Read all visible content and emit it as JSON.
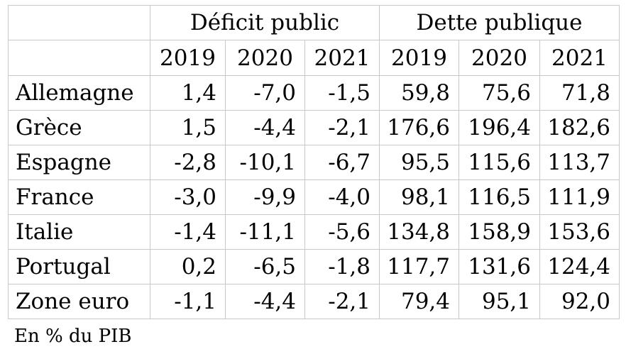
{
  "table": {
    "groups": [
      "Déficit public",
      "Dette publique"
    ],
    "years": [
      "2019",
      "2020",
      "2021",
      "2019",
      "2020",
      "2021"
    ],
    "rows": [
      {
        "country": "Allemagne",
        "values": [
          "1,4",
          "-7,0",
          "-1,5",
          "59,8",
          "75,6",
          "71,8"
        ]
      },
      {
        "country": "Grèce",
        "values": [
          "1,5",
          "-4,4",
          "-2,1",
          "176,6",
          "196,4",
          "182,6"
        ]
      },
      {
        "country": "Espagne",
        "values": [
          "-2,8",
          "-10,1",
          "-6,7",
          "95,5",
          "115,6",
          "113,7"
        ]
      },
      {
        "country": "France",
        "values": [
          "-3,0",
          "-9,9",
          "-4,0",
          "98,1",
          "116,5",
          "111,9"
        ]
      },
      {
        "country": "Italie",
        "values": [
          "-1,4",
          "-11,1",
          "-5,6",
          "134,8",
          "158,9",
          "153,6"
        ]
      },
      {
        "country": "Portugal",
        "values": [
          "0,2",
          "-6,5",
          "-1,8",
          "117,7",
          "131,6",
          "124,4"
        ]
      },
      {
        "country": "Zone euro",
        "values": [
          "-1,1",
          "-4,4",
          "-2,1",
          "79,4",
          "95,1",
          "92,0"
        ]
      }
    ]
  },
  "footnote": "En % du PIB",
  "colors": {
    "border": "#c8c8c8",
    "text": "#000000",
    "background": "#ffffff"
  }
}
